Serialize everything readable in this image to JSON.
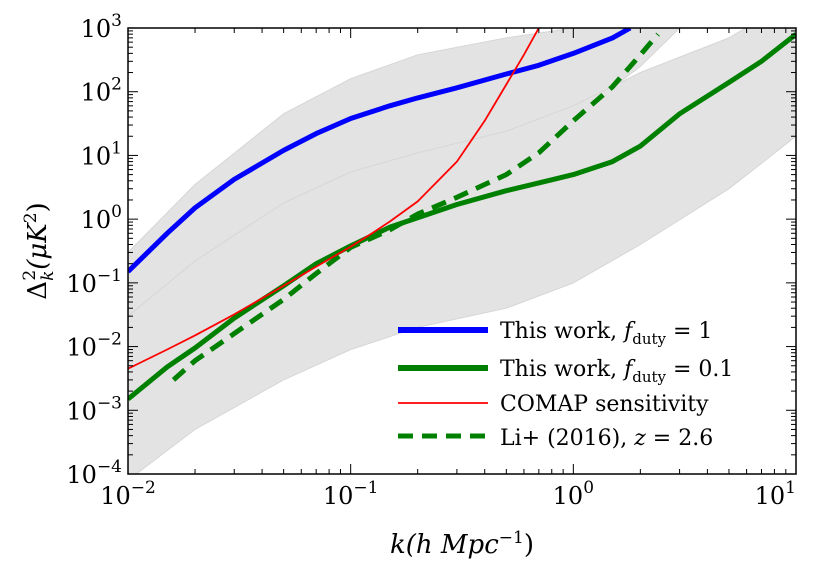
{
  "chart_data": {
    "type": "line",
    "x_scale": "log",
    "y_scale": "log",
    "xlim": [
      0.01,
      10
    ],
    "ylim": [
      0.0001,
      1000
    ],
    "x_ticks": [
      {
        "value": 0.01,
        "base": "10",
        "exp": "−2"
      },
      {
        "value": 0.1,
        "base": "10",
        "exp": "−1"
      },
      {
        "value": 1,
        "base": "10",
        "exp": "0"
      },
      {
        "value": 10,
        "base": "10",
        "exp": "1"
      }
    ],
    "y_ticks": [
      {
        "value": 0.0001,
        "base": "10",
        "exp": "−4"
      },
      {
        "value": 0.001,
        "base": "10",
        "exp": "−3"
      },
      {
        "value": 0.01,
        "base": "10",
        "exp": "−2"
      },
      {
        "value": 0.1,
        "base": "10",
        "exp": "−1"
      },
      {
        "value": 1,
        "base": "10",
        "exp": "0"
      },
      {
        "value": 10,
        "base": "10",
        "exp": "1"
      },
      {
        "value": 100,
        "base": "10",
        "exp": "2"
      },
      {
        "value": 1000,
        "base": "10",
        "exp": "3"
      }
    ],
    "xlabel": {
      "main": "k(h Mpc",
      "sup": "−1",
      "tail": ")"
    },
    "ylabel": {
      "delta": "Δ",
      "sub": "k",
      "sup": "2",
      "main": "(μK",
      "sup2": "2",
      "tail": ")"
    },
    "bands": [
      {
        "name": "f_duty = 1 uncertainty",
        "color": "#e3e3e3",
        "x": [
          0.01,
          0.02,
          0.05,
          0.1,
          0.2,
          0.5,
          1,
          2,
          3
        ],
        "upper": [
          0.3,
          3.5,
          45,
          160,
          380,
          700,
          1000,
          2000,
          4000
        ],
        "lower": [
          0.006,
          0.07,
          0.9,
          3.5,
          8,
          16,
          40,
          250,
          1000
        ]
      },
      {
        "name": "f_duty = 0.1 uncertainty",
        "color": "#e3e3e3",
        "x": [
          0.01,
          0.02,
          0.05,
          0.1,
          0.2,
          0.5,
          1,
          2,
          5,
          10
        ],
        "upper": [
          0.03,
          0.22,
          1.8,
          5.5,
          11,
          24,
          60,
          200,
          700,
          3000
        ],
        "lower": [
          8e-05,
          0.0005,
          0.003,
          0.009,
          0.02,
          0.04,
          0.1,
          0.4,
          3,
          20
        ]
      }
    ],
    "series": [
      {
        "name": "This work, f_duty = 1",
        "color": "#0000ff",
        "width": 5,
        "dash": "",
        "x": [
          0.01,
          0.015,
          0.02,
          0.03,
          0.05,
          0.07,
          0.1,
          0.15,
          0.2,
          0.3,
          0.5,
          0.7,
          1,
          1.5,
          1.8
        ],
        "y": [
          0.15,
          0.6,
          1.5,
          4.2,
          12,
          22,
          38,
          60,
          80,
          115,
          190,
          260,
          400,
          700,
          1000
        ]
      },
      {
        "name": "This work, f_duty = 0.1",
        "color": "#008000",
        "width": 5,
        "dash": "",
        "x": [
          0.01,
          0.015,
          0.02,
          0.03,
          0.05,
          0.07,
          0.1,
          0.15,
          0.2,
          0.3,
          0.5,
          0.7,
          1,
          1.5,
          2,
          3,
          5,
          7,
          10
        ],
        "y": [
          0.0015,
          0.0048,
          0.0095,
          0.028,
          0.09,
          0.2,
          0.38,
          0.75,
          1.05,
          1.7,
          2.8,
          3.7,
          5,
          8,
          14,
          45,
          140,
          300,
          800
        ]
      },
      {
        "name": "COMAP sensitivity",
        "color": "#ff0000",
        "width": 1.8,
        "dash": "",
        "x": [
          0.01,
          0.015,
          0.02,
          0.03,
          0.05,
          0.07,
          0.1,
          0.12,
          0.15,
          0.2,
          0.3,
          0.4,
          0.5,
          0.6,
          0.7
        ],
        "y": [
          0.0045,
          0.009,
          0.015,
          0.032,
          0.09,
          0.18,
          0.37,
          0.55,
          0.92,
          1.9,
          8,
          35,
          130,
          380,
          1000
        ]
      },
      {
        "name": "Li+ (2016), z = 2.6",
        "color": "#008000",
        "width": 5,
        "dash": "15,9",
        "x": [
          0.016,
          0.02,
          0.03,
          0.05,
          0.07,
          0.1,
          0.15,
          0.2,
          0.3,
          0.5,
          0.7,
          1,
          1.5,
          2,
          2.4
        ],
        "y": [
          0.003,
          0.006,
          0.016,
          0.055,
          0.14,
          0.36,
          0.68,
          1.2,
          2.2,
          5,
          11,
          35,
          120,
          380,
          800
        ]
      }
    ],
    "legend": {
      "placement": "lower-right",
      "entries": [
        {
          "text": "This work, ",
          "math": "f",
          "sub": "duty",
          "eq": " = 1"
        },
        {
          "text": "This work, ",
          "math": "f",
          "sub": "duty",
          "eq": " = 0.1"
        },
        {
          "text": "COMAP sensitivity",
          "math": "",
          "sub": "",
          "eq": ""
        },
        {
          "text": "Li+ (2016), ",
          "math": "z",
          "sub": "",
          "eq": " = 2.6"
        }
      ]
    }
  }
}
